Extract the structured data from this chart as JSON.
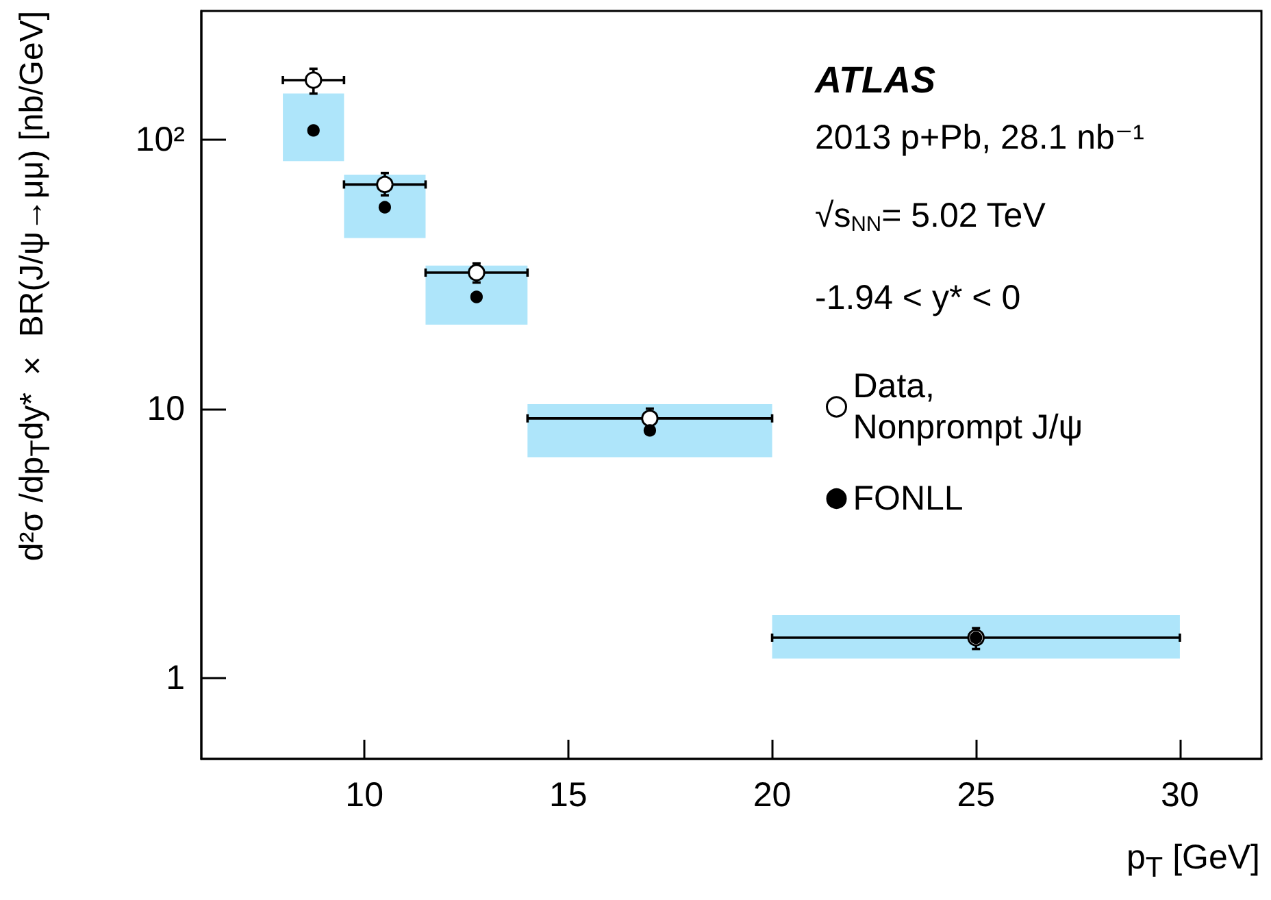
{
  "chart_data": {
    "type": "scatter",
    "xlabel": "p$_{T}$ [GeV]",
    "ylabel": "d²σ /dp$_{T}$dy* × BR(J/ψ→μμ)  [nb/GeV]",
    "x": [
      8.75,
      10.5,
      12.75,
      17,
      25
    ],
    "series": [
      {
        "name": "Data, Nonprompt J/ψ",
        "color": "#000000",
        "values": [
          166,
          68,
          32,
          9.2,
          1.41
        ],
        "errors": [
          [
            148,
            183
          ],
          [
            62,
            75
          ],
          [
            29.4,
            34.6
          ],
          [
            8.6,
            10
          ],
          [
            1.28,
            1.53
          ]
        ],
        "xerrors": [
          [
            8,
            9.5
          ],
          [
            9.5,
            11.5
          ],
          [
            11.5,
            14
          ],
          [
            14,
            20
          ],
          [
            20,
            30
          ]
        ]
      },
      {
        "name": "FONLL",
        "color": "#000000",
        "values": [
          108,
          56,
          26,
          8.3,
          1.41
        ]
      },
      {
        "type": "line",
        "color": "#6ccff6",
        "x": [
          8,
          9.5,
          9.5,
          11.5,
          11.5,
          14,
          14,
          20,
          20,
          30
        ],
        "values": [
          null,
          null,
          null,
          null,
          null,
          null,
          null,
          null,
          null,
          null
        ],
        "lower": [
          83,
          83,
          43,
          43,
          20.5,
          20.5,
          6.6,
          6.6,
          1.18,
          1.18
        ],
        "upper": [
          148,
          148,
          74,
          74,
          34,
          34,
          10.4,
          10.4,
          1.71,
          1.71
        ]
      }
    ],
    "xlim": [
      6,
      32
    ],
    "xticks": [
      10,
      15,
      20,
      25,
      30
    ],
    "ylim": [
      0.5,
      300
    ],
    "yticks": [
      {
        "value": 1,
        "label": "1"
      },
      {
        "value": 10,
        "label": "10"
      },
      {
        "value": 100,
        "label": "10²"
      }
    ],
    "log": "y",
    "grid": false,
    "legend": "right",
    "marker": "circle",
    "annotations": [
      "ATLAS",
      "2013 p+Pb, 28.1 nb⁻¹",
      "√s$_{NN}$= 5.02 TeV",
      "-1.94 < y* < 0"
    ]
  }
}
